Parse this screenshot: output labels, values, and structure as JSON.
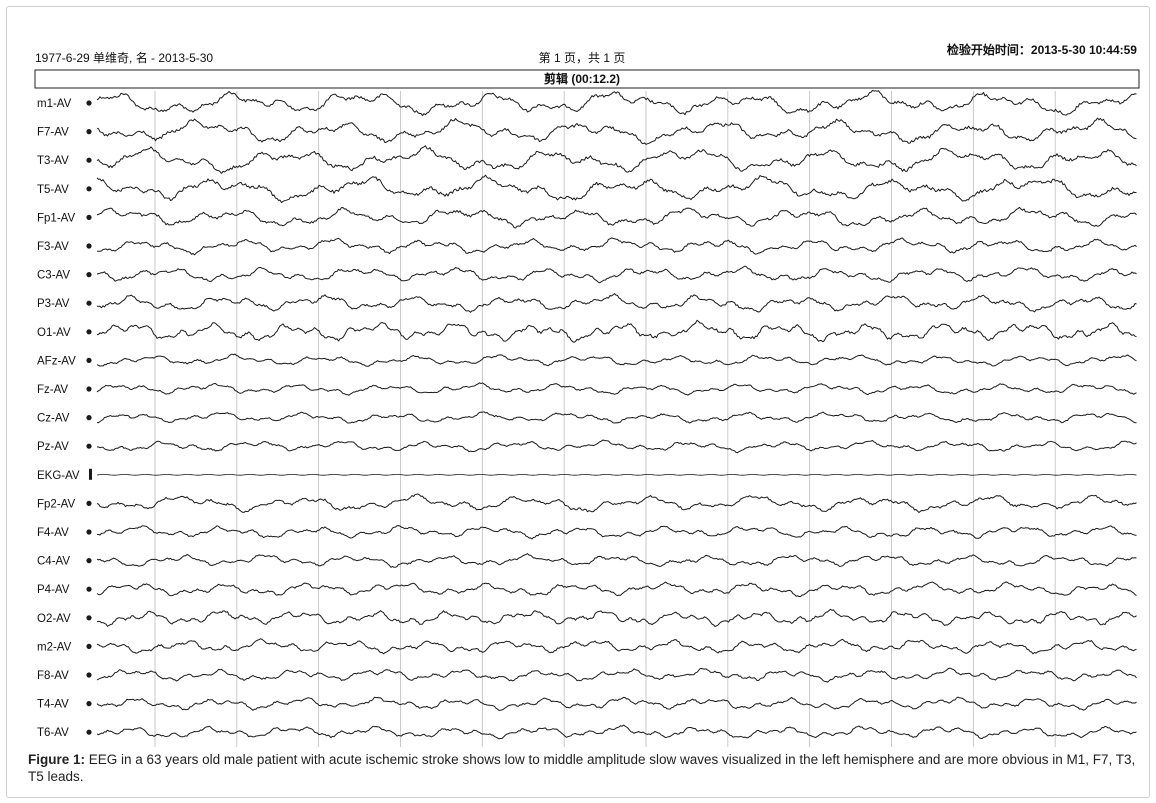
{
  "header": {
    "left": "1977-6-29 单维奇, 名 - 2013-5-30",
    "center": "第 1 页，共 1 页",
    "right": "检验开始时间：2013-5-30 10:44:59",
    "clip_label": "剪辑 (00:12.2)"
  },
  "caption": {
    "label": "Figure 1:",
    "text": " EEG in a 63 years old male patient with acute ischemic stroke shows low to middle amplitude slow waves visualized in the left hemisphere and are more obvious in M1, F7, T3, T5 leads."
  },
  "chart_data": {
    "type": "line",
    "title": "剪辑 (00:12.2)",
    "xlabel": "",
    "ylabel": "",
    "grid": false,
    "channels": [
      {
        "name": "m1-AV",
        "amplitude": 0.85,
        "frequency": 0.9
      },
      {
        "name": "F7-AV",
        "amplitude": 0.85,
        "frequency": 0.9
      },
      {
        "name": "T3-AV",
        "amplitude": 0.9,
        "frequency": 0.85
      },
      {
        "name": "T5-AV",
        "amplitude": 0.9,
        "frequency": 0.85
      },
      {
        "name": "Fp1-AV",
        "amplitude": 0.7,
        "frequency": 1.0
      },
      {
        "name": "F3-AV",
        "amplitude": 0.55,
        "frequency": 1.2
      },
      {
        "name": "C3-AV",
        "amplitude": 0.55,
        "frequency": 1.2
      },
      {
        "name": "P3-AV",
        "amplitude": 0.6,
        "frequency": 1.2
      },
      {
        "name": "O1-AV",
        "amplitude": 0.7,
        "frequency": 1.4
      },
      {
        "name": "AFz-AV",
        "amplitude": 0.4,
        "frequency": 1.3
      },
      {
        "name": "Fz-AV",
        "amplitude": 0.4,
        "frequency": 1.3
      },
      {
        "name": "Cz-AV",
        "amplitude": 0.4,
        "frequency": 1.3
      },
      {
        "name": "Pz-AV",
        "amplitude": 0.4,
        "frequency": 1.3
      },
      {
        "name": "EKG-AV",
        "amplitude": 0.05,
        "frequency": 0.5
      },
      {
        "name": "Fp2-AV",
        "amplitude": 0.6,
        "frequency": 1.0
      },
      {
        "name": "F4-AV",
        "amplitude": 0.45,
        "frequency": 1.3
      },
      {
        "name": "C4-AV",
        "amplitude": 0.45,
        "frequency": 1.3
      },
      {
        "name": "P4-AV",
        "amplitude": 0.5,
        "frequency": 1.3
      },
      {
        "name": "O2-AV",
        "amplitude": 0.55,
        "frequency": 1.5
      },
      {
        "name": "m2-AV",
        "amplitude": 0.5,
        "frequency": 1.4
      },
      {
        "name": "F8-AV",
        "amplitude": 0.45,
        "frequency": 1.4
      },
      {
        "name": "T4-AV",
        "amplitude": 0.45,
        "frequency": 1.4
      },
      {
        "name": "T6-AV",
        "amplitude": 0.45,
        "frequency": 1.4
      }
    ],
    "second_markers": [
      1,
      2,
      3,
      4,
      5,
      6,
      7,
      8,
      9,
      10,
      11,
      12
    ],
    "colors": {
      "trace": "#1a1a1a",
      "paper": "#ffffff"
    }
  }
}
